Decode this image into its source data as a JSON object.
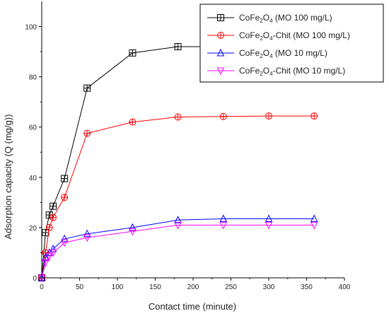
{
  "chart_data": {
    "type": "line",
    "title": "",
    "xlabel": "Contact time (minute)",
    "ylabel": "Adsorption capacity (Q (mg/g))",
    "xlim": [
      0,
      400
    ],
    "ylim": [
      0,
      110
    ],
    "xticks": [
      0,
      50,
      100,
      150,
      200,
      250,
      300,
      350,
      400
    ],
    "yticks": [
      0,
      20,
      40,
      60,
      80,
      100
    ],
    "grid": false,
    "legend_position": "top-right",
    "series": [
      {
        "name_parts": [
          "CoFe",
          "2",
          "O",
          "4",
          " (MO 100 mg/L)"
        ],
        "color": "#000000",
        "marker": "square-cross",
        "x": [
          0,
          5,
          10,
          15,
          30,
          60,
          120,
          180,
          240,
          300,
          360
        ],
        "y": [
          0,
          18,
          25,
          28.5,
          39.5,
          75.5,
          89.5,
          92,
          92,
          92,
          92
        ]
      },
      {
        "name_parts": [
          "CoFe",
          "2",
          "O",
          "4",
          "-Chit (MO 100 mg/L)"
        ],
        "color": "#ff0000",
        "marker": "circle-cross",
        "x": [
          0,
          5,
          10,
          15,
          30,
          60,
          120,
          180,
          240,
          300,
          360
        ],
        "y": [
          0,
          10,
          20,
          24,
          32,
          57.5,
          62,
          64,
          64.2,
          64.4,
          64.4
        ]
      },
      {
        "name_parts": [
          "CoFe",
          "2",
          "O",
          "4",
          " (MO 10 mg/L)"
        ],
        "color": "#0000ff",
        "marker": "triangle-up",
        "x": [
          0,
          5,
          10,
          15,
          30,
          60,
          120,
          180,
          240,
          300,
          360
        ],
        "y": [
          0,
          8,
          10,
          11.5,
          15.5,
          17.5,
          20,
          23,
          23.5,
          23.5,
          23.5
        ]
      },
      {
        "name_parts": [
          "CoFe",
          "2",
          "O",
          "4",
          "-Chit (MO 10 mg/L)"
        ],
        "color": "#ff00ff",
        "marker": "triangle-down",
        "x": [
          0,
          5,
          10,
          15,
          30,
          60,
          120,
          180,
          240,
          300,
          360
        ],
        "y": [
          0,
          6,
          8.5,
          10,
          14,
          16,
          18.5,
          21,
          21,
          21,
          21
        ]
      }
    ]
  }
}
